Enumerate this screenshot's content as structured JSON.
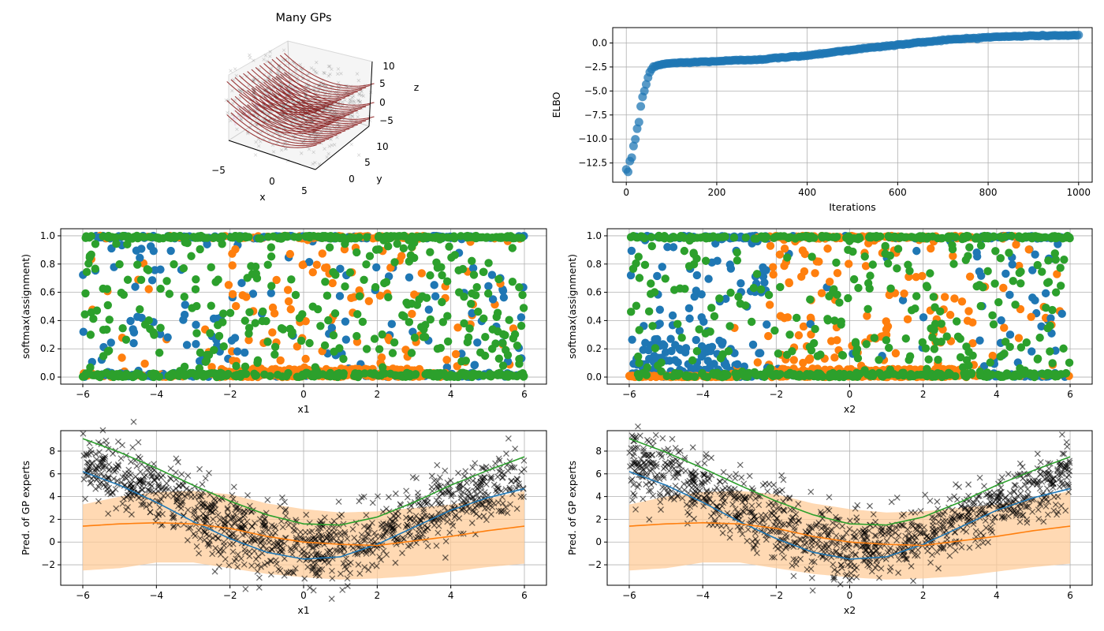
{
  "figure": {
    "colors": {
      "blue": "#1f77b4",
      "orange": "#ff7f0e",
      "green": "#2ca02c",
      "black": "#000000",
      "red": "#8b1a1a",
      "grid": "#b0b0b0",
      "band": "#ffcc99"
    }
  },
  "chart_data": [
    {
      "id": "many-gps",
      "type": "scatter",
      "projection": "3d",
      "title": "Many GPs",
      "xlabel": "x",
      "ylabel": "y",
      "zlabel": "z",
      "x_ticks": [
        "−5",
        "0",
        "5"
      ],
      "y_ticks": [
        "0",
        "5",
        "10"
      ],
      "z_ticks": [
        "10",
        "5",
        "0",
        "−5"
      ],
      "series": [
        {
          "role": "observed points (black, translucent)",
          "color": "#000000"
        },
        {
          "role": "GP mean surfaces (dark red)",
          "color": "#8b1a1a",
          "count": 3
        }
      ]
    },
    {
      "id": "elbo",
      "type": "scatter",
      "xlabel": "Iterations",
      "ylabel": "ELBO",
      "xlim": [
        -30,
        1030
      ],
      "ylim": [
        -14.5,
        1.6
      ],
      "x_ticks": [
        0,
        200,
        400,
        600,
        800,
        1000
      ],
      "y_ticks": [
        0.0,
        -2.5,
        -5.0,
        -7.5,
        -10.0,
        -12.5
      ],
      "y_tick_labels": [
        "0.0",
        "−2.5",
        "−5.0",
        "−7.5",
        "−10.0",
        "−12.5"
      ],
      "grid": true,
      "series": [
        {
          "color": "#1f77b4",
          "curve_x": [
            0,
            10,
            20,
            30,
            40,
            50,
            60,
            80,
            100,
            150,
            200,
            300,
            400,
            500,
            600,
            700,
            800,
            900,
            1000
          ],
          "curve_y": [
            -14.0,
            -12.0,
            -10.0,
            -7.5,
            -5.0,
            -3.2,
            -2.5,
            -2.2,
            -2.1,
            -2.0,
            -1.9,
            -1.7,
            -1.3,
            -0.7,
            -0.2,
            0.3,
            0.6,
            0.75,
            0.8
          ]
        }
      ]
    },
    {
      "id": "assign-x1",
      "type": "scatter",
      "xlabel": "x1",
      "ylabel": "softmax(assignment)",
      "xlim": [
        -6.6,
        6.6
      ],
      "ylim": [
        -0.05,
        1.05
      ],
      "x_ticks": [
        -6,
        -4,
        -2,
        0,
        2,
        4,
        6
      ],
      "x_tick_labels": [
        "−6",
        "−4",
        "−2",
        "0",
        "2",
        "4",
        "6"
      ],
      "y_ticks": [
        0.0,
        0.2,
        0.4,
        0.6,
        0.8,
        1.0
      ],
      "y_tick_labels": [
        "0.0",
        "0.2",
        "0.4",
        "0.6",
        "0.8",
        "1.0"
      ],
      "grid": true,
      "series": [
        {
          "color": "#1f77b4"
        },
        {
          "color": "#ff7f0e"
        },
        {
          "color": "#2ca02c"
        }
      ]
    },
    {
      "id": "assign-x2",
      "type": "scatter",
      "xlabel": "x2",
      "ylabel": "softmax(assignment)",
      "xlim": [
        -6.6,
        6.6
      ],
      "ylim": [
        -0.05,
        1.05
      ],
      "x_ticks": [
        -6,
        -4,
        -2,
        0,
        2,
        4,
        6
      ],
      "x_tick_labels": [
        "−6",
        "−4",
        "−2",
        "0",
        "2",
        "4",
        "6"
      ],
      "y_ticks": [
        0.0,
        0.2,
        0.4,
        0.6,
        0.8,
        1.0
      ],
      "y_tick_labels": [
        "0.0",
        "0.2",
        "0.4",
        "0.6",
        "0.8",
        "1.0"
      ],
      "grid": true,
      "series": [
        {
          "color": "#1f77b4"
        },
        {
          "color": "#ff7f0e"
        },
        {
          "color": "#2ca02c"
        }
      ]
    },
    {
      "id": "pred-x1",
      "type": "line",
      "xlabel": "x1",
      "ylabel": "Pred. of GP experts",
      "xlim": [
        -6.6,
        6.6
      ],
      "ylim": [
        -3.8,
        9.8
      ],
      "x_ticks": [
        -6,
        -4,
        -2,
        0,
        2,
        4,
        6
      ],
      "x_tick_labels": [
        "−6",
        "−4",
        "−2",
        "0",
        "2",
        "4",
        "6"
      ],
      "y_ticks": [
        -2,
        0,
        2,
        4,
        6,
        8
      ],
      "y_tick_labels": [
        "−2",
        "0",
        "2",
        "4",
        "6",
        "8"
      ],
      "grid": true,
      "x": [
        -6,
        -5,
        -4,
        -3,
        -2,
        -1,
        0,
        1,
        2,
        3,
        4,
        5,
        6
      ],
      "series": [
        {
          "color": "#2ca02c",
          "values": [
            9.1,
            7.9,
            6.5,
            5.0,
            3.6,
            2.4,
            1.6,
            1.5,
            2.2,
            3.5,
            5.0,
            6.3,
            7.5
          ]
        },
        {
          "color": "#1f77b4",
          "values": [
            6.2,
            5.0,
            3.5,
            1.8,
            0.3,
            -0.9,
            -1.5,
            -1.3,
            -0.2,
            1.3,
            2.8,
            3.9,
            4.7
          ]
        },
        {
          "color": "#ff7f0e",
          "values": [
            1.4,
            1.6,
            1.7,
            1.6,
            1.2,
            0.5,
            0.0,
            -0.2,
            -0.3,
            0.1,
            0.5,
            1.0,
            1.4
          ]
        }
      ],
      "band": {
        "color": "#ffcc99",
        "upper": [
          3.3,
          4.0,
          4.4,
          4.5,
          4.2,
          3.4,
          2.9,
          2.6,
          2.7,
          3.0,
          3.3,
          3.8,
          4.5
        ],
        "lower": [
          -2.5,
          -2.3,
          -1.8,
          -1.8,
          -2.3,
          -2.8,
          -3.1,
          -3.3,
          -3.2,
          -3.0,
          -2.6,
          -2.2,
          -1.9
        ]
      },
      "scatter_color": "#000000"
    },
    {
      "id": "pred-x2",
      "type": "line",
      "xlabel": "x2",
      "ylabel": "Pred. of GP experts",
      "xlim": [
        -6.6,
        6.6
      ],
      "ylim": [
        -3.8,
        9.8
      ],
      "x_ticks": [
        -6,
        -4,
        -2,
        0,
        2,
        4,
        6
      ],
      "x_tick_labels": [
        "−6",
        "−4",
        "−2",
        "0",
        "2",
        "4",
        "6"
      ],
      "y_ticks": [
        -2,
        0,
        2,
        4,
        6,
        8
      ],
      "y_tick_labels": [
        "−2",
        "0",
        "2",
        "4",
        "6",
        "8"
      ],
      "grid": true,
      "x": [
        -6,
        -5,
        -4,
        -3,
        -2,
        -1,
        0,
        1,
        2,
        3,
        4,
        5,
        6
      ],
      "series": [
        {
          "color": "#2ca02c",
          "values": [
            9.1,
            7.9,
            6.5,
            5.0,
            3.6,
            2.4,
            1.6,
            1.5,
            2.2,
            3.5,
            5.0,
            6.3,
            7.5
          ]
        },
        {
          "color": "#1f77b4",
          "values": [
            6.2,
            5.0,
            3.5,
            1.8,
            0.3,
            -0.9,
            -1.5,
            -1.3,
            -0.2,
            1.3,
            2.8,
            3.9,
            4.7
          ]
        },
        {
          "color": "#ff7f0e",
          "values": [
            1.4,
            1.6,
            1.7,
            1.6,
            1.2,
            0.5,
            0.0,
            -0.2,
            -0.3,
            0.1,
            0.5,
            1.0,
            1.4
          ]
        }
      ],
      "band": {
        "color": "#ffcc99",
        "upper": [
          3.3,
          4.0,
          4.4,
          4.5,
          4.2,
          3.4,
          2.9,
          2.6,
          2.7,
          3.0,
          3.3,
          3.8,
          4.5
        ],
        "lower": [
          -2.5,
          -2.3,
          -1.8,
          -1.8,
          -2.3,
          -2.8,
          -3.1,
          -3.3,
          -3.2,
          -3.0,
          -2.6,
          -2.2,
          -1.9
        ]
      },
      "scatter_color": "#000000"
    }
  ]
}
